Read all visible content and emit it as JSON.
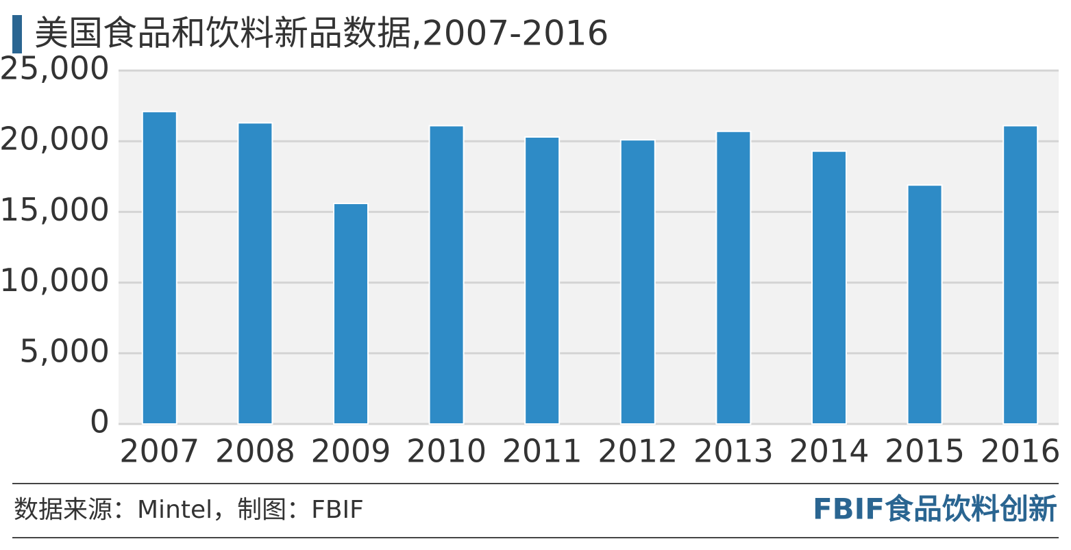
{
  "chart_data": {
    "type": "bar",
    "title": "美国食品和饮料新品数据,2007-2016",
    "categories": [
      "2007",
      "2008",
      "2009",
      "2010",
      "2011",
      "2012",
      "2013",
      "2014",
      "2015",
      "2016"
    ],
    "values": [
      22100,
      21300,
      15600,
      21100,
      20300,
      20100,
      20700,
      19300,
      16900,
      21100
    ],
    "color": "#2e8bc6",
    "ylim": [
      0,
      25000
    ],
    "yticks": [
      0,
      {
        "value": 5000,
        "label": "5,000"
      },
      {
        "value": 10000,
        "label": "10,000"
      },
      {
        "value": 15000,
        "label": "15,000"
      },
      {
        "value": 20000,
        "label": "20,000"
      },
      {
        "value": 25000,
        "label": "25,000"
      }
    ],
    "grid": true,
    "source": "数据来源：Mintel，制图：FBIF",
    "brand": "FBIF食品饮料创新"
  }
}
